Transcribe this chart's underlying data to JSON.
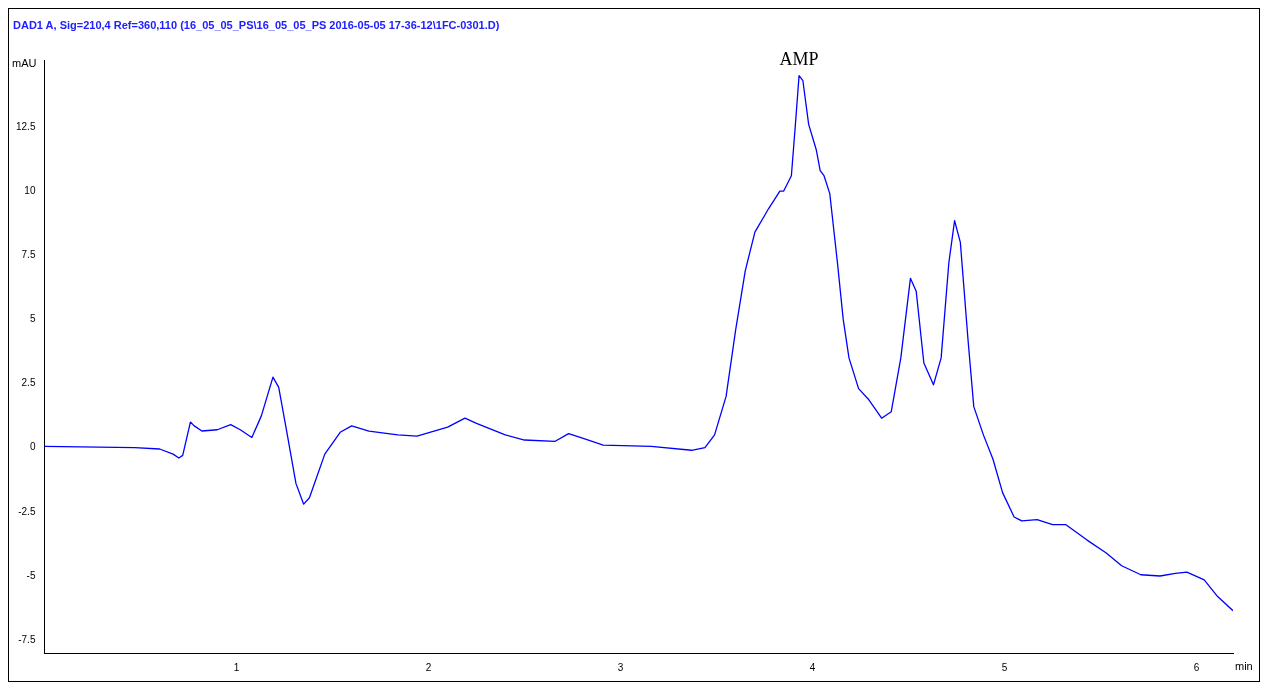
{
  "chart_data": {
    "type": "line",
    "title": "DAD1 A, Sig=210,4 Ref=360,110 (16_05_05_PS\\16_05_05_PS 2016-05-05 17-36-12\\1FC-0301.D)",
    "ylabel": "mAU",
    "xlabel": "min",
    "annotations": [
      {
        "text": "AMP",
        "x": 3.93,
        "y": 14.5
      }
    ],
    "series": [
      {
        "color": "#0000ff",
        "x": [
          0,
          0.47,
          0.6,
          0.67,
          0.7,
          0.72,
          0.76,
          0.78,
          0.82,
          0.9,
          0.97,
          1.02,
          1.08,
          1.13,
          1.19,
          1.22,
          1.26,
          1.31,
          1.35,
          1.38,
          1.46,
          1.54,
          1.6,
          1.69,
          1.84,
          1.94,
          2.1,
          2.19,
          2.25,
          2.4,
          2.5,
          2.66,
          2.73,
          2.81,
          2.91,
          3.16,
          3.37,
          3.44,
          3.49,
          3.55,
          3.6,
          3.65,
          3.7,
          3.77,
          3.83,
          3.85,
          3.89,
          3.91,
          3.93,
          3.95,
          3.98,
          4.02,
          4.04,
          4.06,
          4.09,
          4.13,
          4.16,
          4.19,
          4.24,
          4.29,
          4.36,
          4.41,
          4.46,
          4.51,
          4.54,
          4.58,
          4.63,
          4.67,
          4.71,
          4.74,
          4.77,
          4.81,
          4.84,
          4.89,
          4.94,
          4.99,
          5.05,
          5.09,
          5.17,
          5.25,
          5.32,
          5.43,
          5.53,
          5.61,
          5.71,
          5.81,
          5.89,
          5.95,
          6.04,
          6.11,
          6.19
        ],
        "values": [
          0.05,
          0,
          -0.05,
          -0.25,
          -0.4,
          -0.3,
          1,
          0.85,
          0.65,
          0.7,
          0.9,
          0.7,
          0.4,
          1.25,
          2.75,
          2.35,
          0.7,
          -1.4,
          -2.2,
          -1.95,
          -0.25,
          0.6,
          0.85,
          0.65,
          0.5,
          0.45,
          0.8,
          1.15,
          0.95,
          0.5,
          0.3,
          0.25,
          0.55,
          0.35,
          0.1,
          0.05,
          -0.1,
          0,
          0.5,
          2,
          4.6,
          6.9,
          8.4,
          9.3,
          10,
          10,
          10.6,
          12.5,
          14.5,
          14.3,
          12.6,
          11.6,
          10.8,
          10.6,
          9.9,
          7.2,
          5,
          3.5,
          2.3,
          1.9,
          1.15,
          1.4,
          3.5,
          6.6,
          6.1,
          3.3,
          2.45,
          3.5,
          7.2,
          8.85,
          8,
          4.2,
          1.6,
          0.5,
          -0.45,
          -1.75,
          -2.7,
          -2.85,
          -2.8,
          -3,
          -3,
          -3.6,
          -4.1,
          -4.6,
          -4.95,
          -5,
          -4.9,
          -4.85,
          -5.15,
          -5.8,
          -6.35
        ]
      }
    ],
    "xlim": [
      0,
      6.19
    ],
    "xticks": [
      1,
      2,
      3,
      4,
      5,
      6
    ],
    "ylim": [
      -8,
      15.1
    ],
    "yticks": [
      -7.5,
      -5,
      -2.5,
      0,
      2.5,
      5,
      7.5,
      10,
      12.5
    ],
    "grid": false,
    "legend": false,
    "marker": "none",
    "line_style": "solid"
  }
}
